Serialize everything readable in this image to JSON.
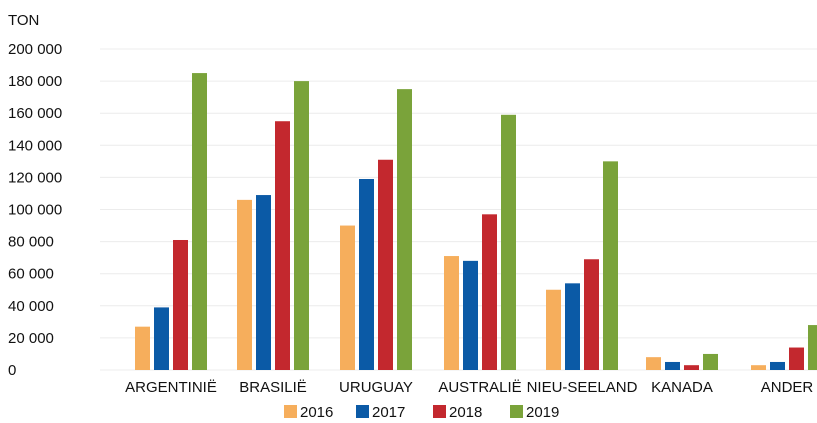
{
  "chart_data": {
    "type": "bar",
    "ylabel": "TON",
    "ylim": [
      0,
      200000
    ],
    "yticks": [
      0,
      20000,
      40000,
      60000,
      80000,
      100000,
      120000,
      140000,
      160000,
      180000,
      200000
    ],
    "ytick_labels": [
      "0",
      "20 000",
      "40 000",
      "60 000",
      "80 000",
      "100 000",
      "120 000",
      "140 000",
      "160 000",
      "180 000",
      "200 000"
    ],
    "grid": true,
    "legend_position": "bottom-center",
    "categories": [
      "ARGENTINIË",
      "BRASILIË",
      "URUGUAY",
      "AUSTRALIË",
      "NIEU-SEELAND",
      "KANADA",
      "ANDER"
    ],
    "series": [
      {
        "name": "2016",
        "color": "#f6ae5c",
        "values": [
          27000,
          106000,
          90000,
          71000,
          50000,
          8000,
          3000
        ]
      },
      {
        "name": "2017",
        "color": "#0b5aa6",
        "values": [
          39000,
          109000,
          119000,
          68000,
          54000,
          5000,
          5000
        ]
      },
      {
        "name": "2018",
        "color": "#c3282e",
        "values": [
          81000,
          155000,
          131000,
          97000,
          69000,
          3000,
          14000
        ]
      },
      {
        "name": "2019",
        "color": "#7aa33a",
        "values": [
          185000,
          180000,
          175000,
          159000,
          130000,
          10000,
          28000
        ]
      }
    ]
  }
}
